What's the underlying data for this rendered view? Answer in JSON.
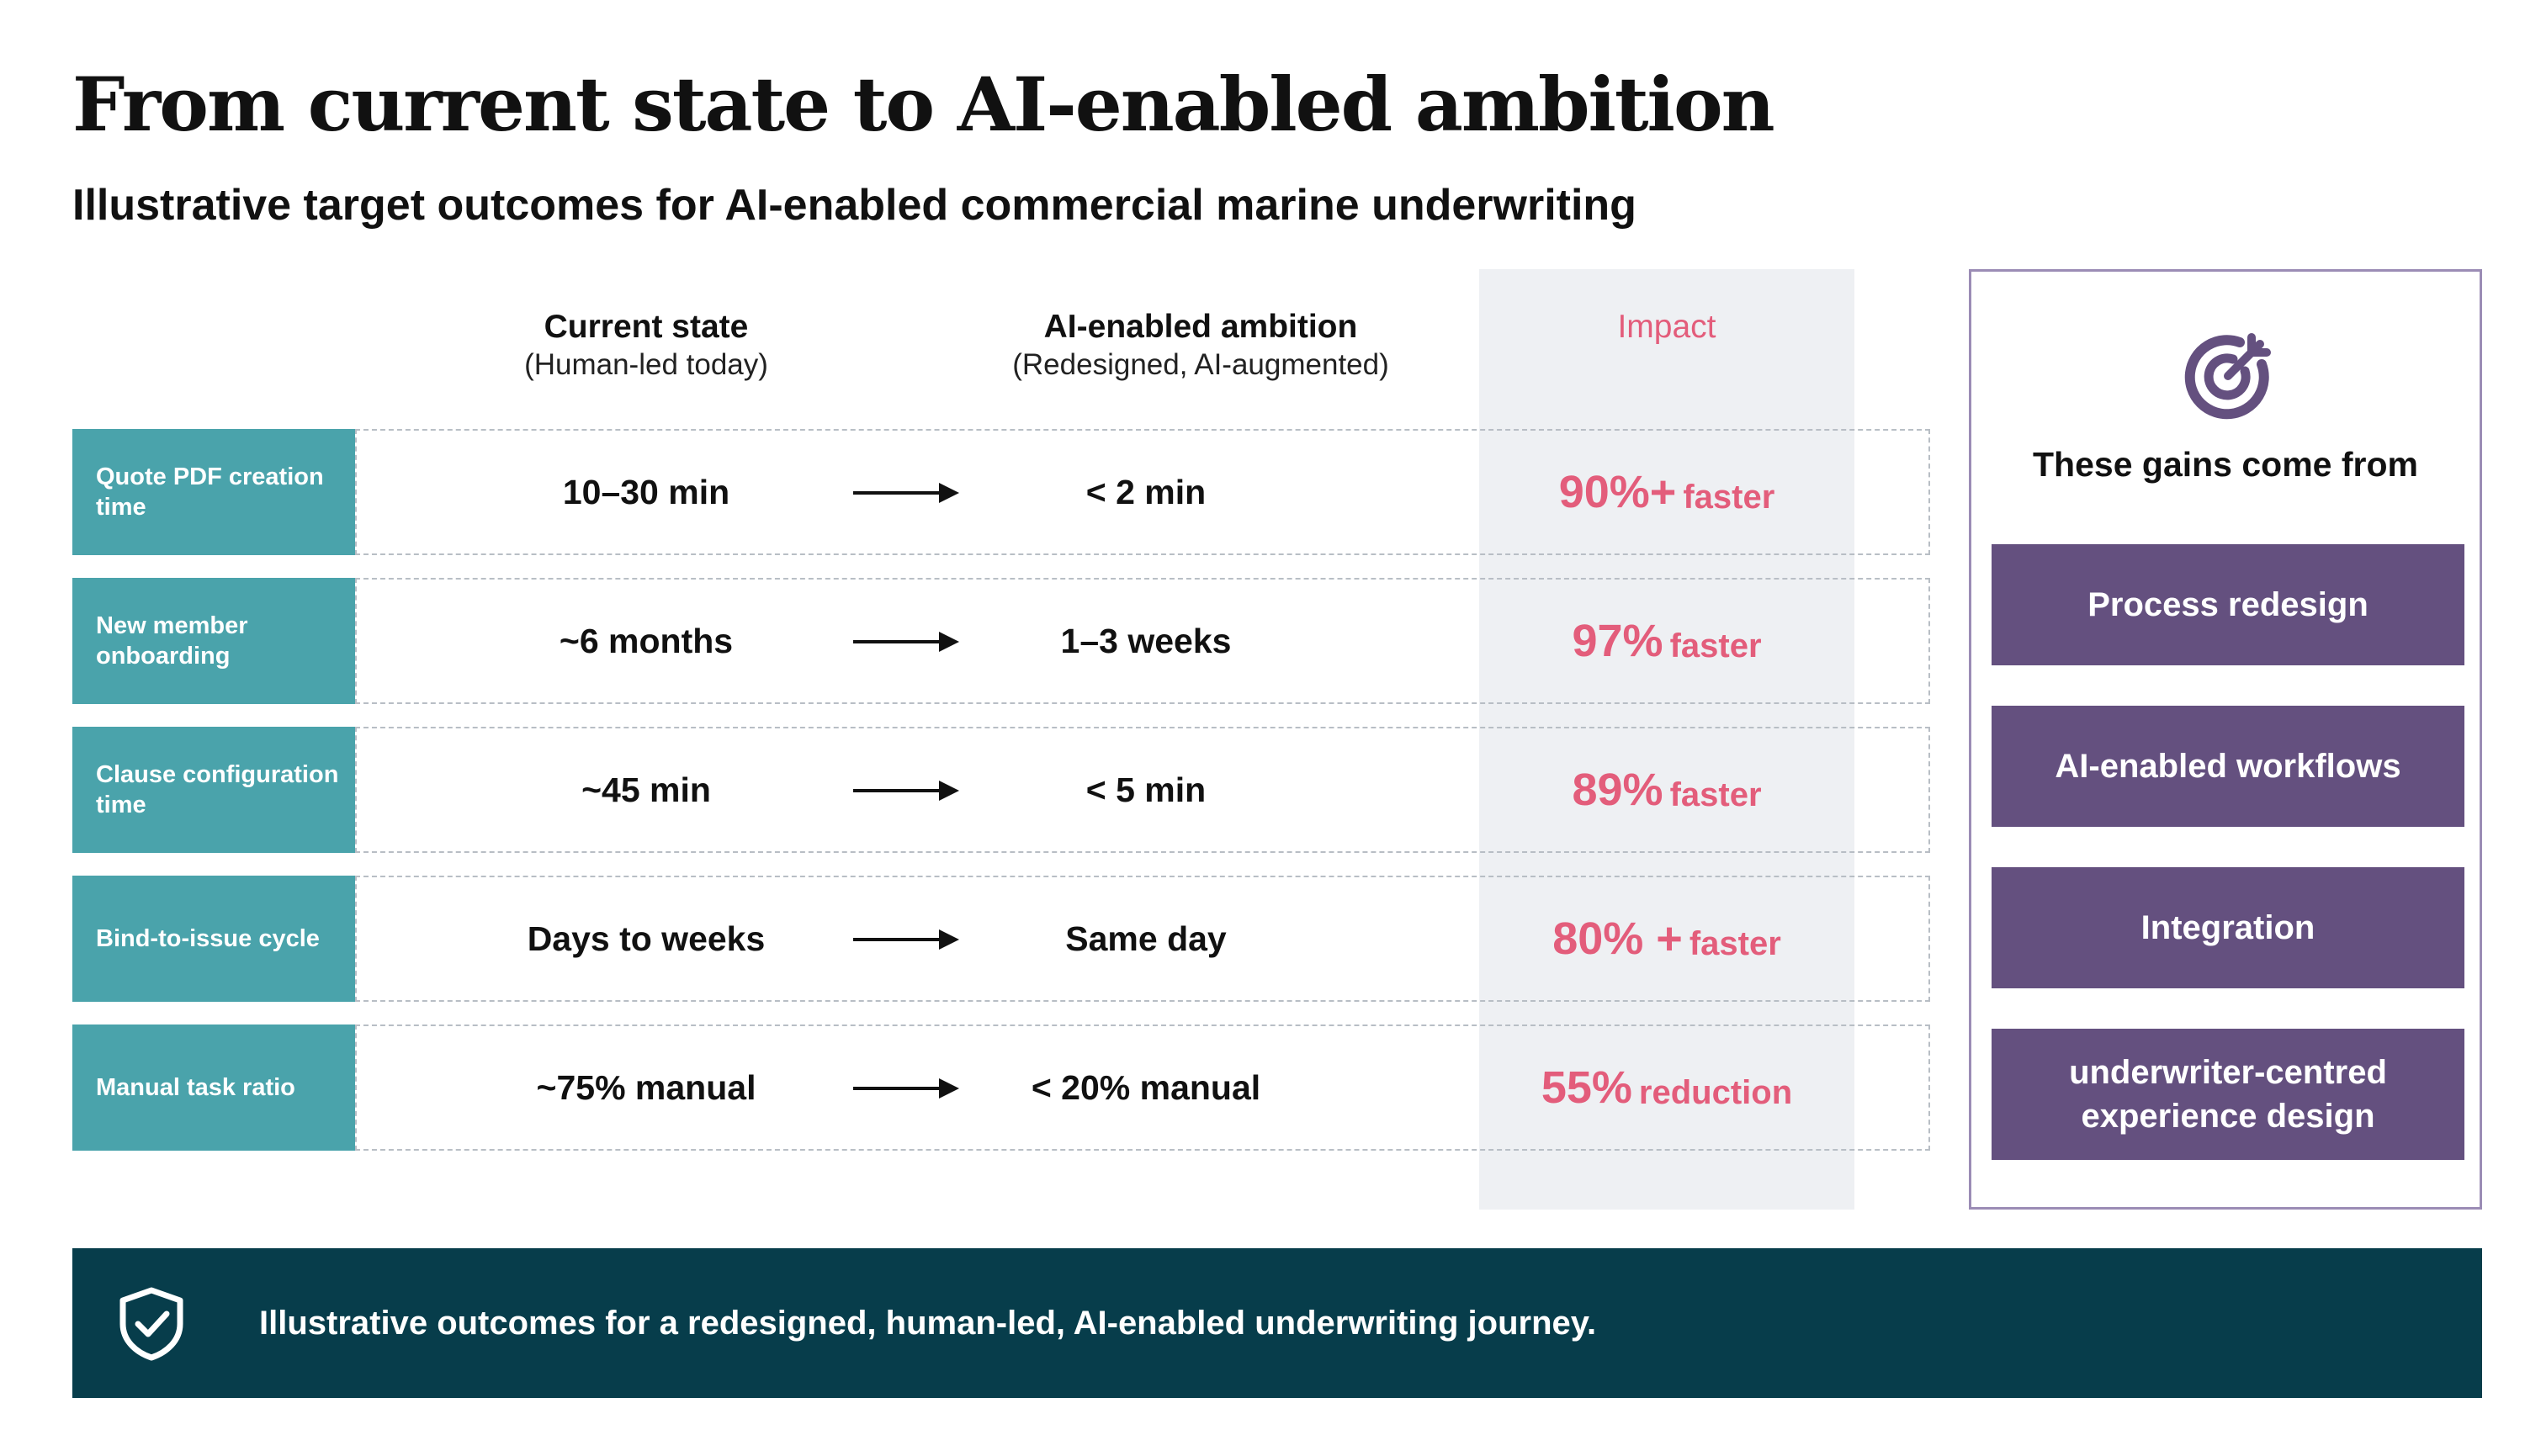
{
  "header": {
    "title": "From current state to AI-enabled ambition",
    "subtitle": "Illustrative target outcomes for AI-enabled commercial marine underwriting"
  },
  "columns": {
    "current_title": "Current state",
    "current_sub": "(Human-led today)",
    "ambition_title": "AI-enabled ambition",
    "ambition_sub": "(Redesigned, AI-augmented)",
    "impact_title": "Impact"
  },
  "rows": [
    {
      "label": "Quote PDF creation time",
      "current": "10–30 min",
      "ambition": "< 2 min",
      "impact_value": "90%+",
      "impact_text": "faster"
    },
    {
      "label": "New member onboarding",
      "current": "~6 months",
      "ambition": "1–3 weeks",
      "impact_value": "97%",
      "impact_text": "faster"
    },
    {
      "label": "Clause configuration time",
      "current": "~45 min",
      "ambition": "< 5 min",
      "impact_value": "89%",
      "impact_text": "faster"
    },
    {
      "label": "Bind-to-issue cycle",
      "current": "Days to weeks",
      "ambition": "Same day",
      "impact_value": "80% +",
      "impact_text": "faster"
    },
    {
      "label": "Manual task ratio",
      "current": "~75% manual",
      "ambition": "< 20% manual",
      "impact_value": "55%",
      "impact_text": "reduction"
    }
  ],
  "side_panel": {
    "icon": "target-icon",
    "title": "These gains come from",
    "items": [
      "Process redesign",
      "AI-enabled workflows",
      "Integration",
      "underwriter-centred experience design"
    ]
  },
  "banner": {
    "icon": "shield-check-icon",
    "text": "Illustrative outcomes for a redesigned, human-led, AI-enabled underwriting journey."
  },
  "colors": {
    "teal_label": "#4aa3ab",
    "impact_pink": "#e35d7b",
    "purple": "#64507f",
    "panel_border": "#9b8cb5",
    "banner_bg": "#073d4b",
    "impact_bg": "#eef0f3"
  }
}
